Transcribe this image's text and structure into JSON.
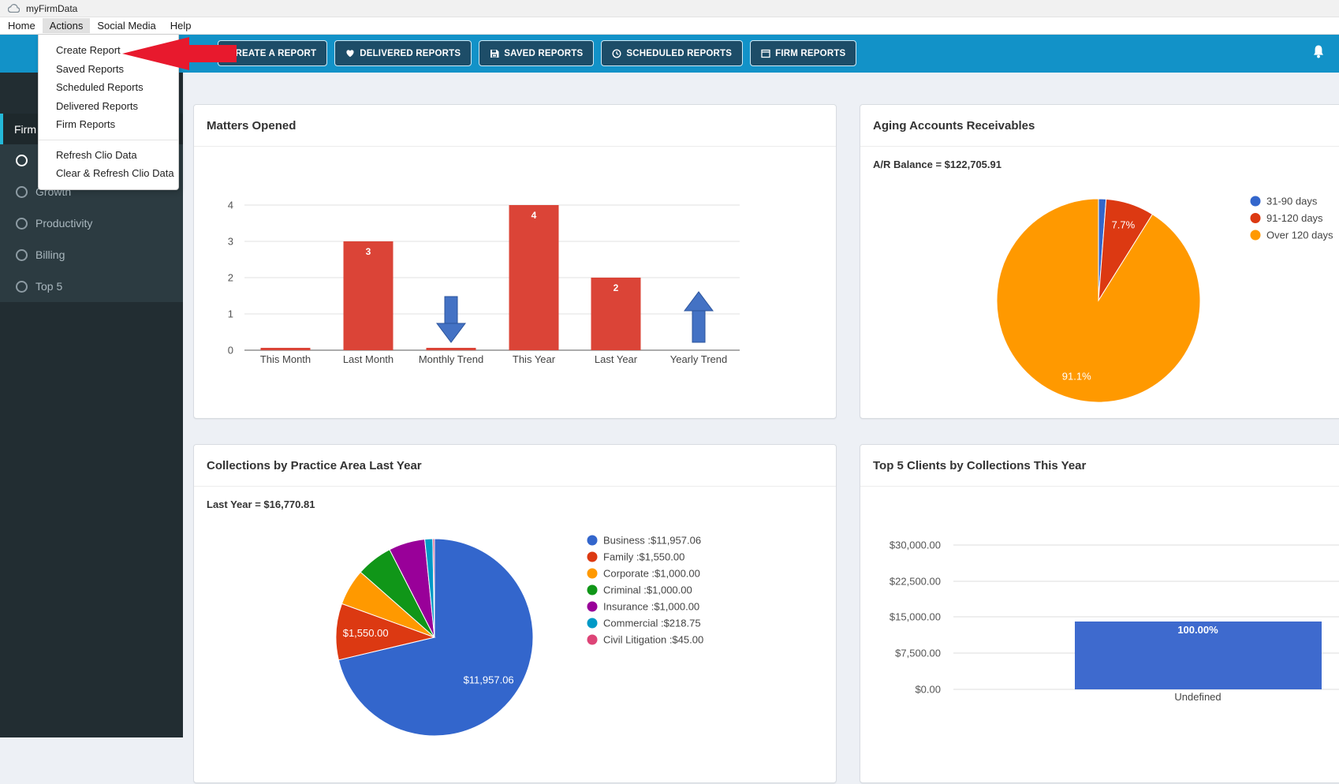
{
  "window": {
    "title": "myFirmData",
    "icon": "cloud-icon"
  },
  "menubar": {
    "items": [
      "Home",
      "Actions",
      "Social Media",
      "Help"
    ],
    "active_item": "Actions"
  },
  "actions_menu": {
    "primary": [
      "Create Report",
      "Saved Reports",
      "Scheduled Reports",
      "Delivered Reports",
      "Firm Reports"
    ],
    "secondary": [
      "Refresh Clio Data",
      "Clear & Refresh Clio Data"
    ]
  },
  "annotation": {
    "shape": "red-arrow-pointing-left",
    "points_at": "Create Report",
    "color": "#e8192d"
  },
  "toolbar": {
    "background": "#1292c8",
    "buttons": [
      {
        "label": "CREATE A REPORT",
        "icon": ""
      },
      {
        "label": "DELIVERED REPORTS",
        "icon": "heart-icon"
      },
      {
        "label": "SAVED REPORTS",
        "icon": "save-icon"
      },
      {
        "label": "SCHEDULED REPORTS",
        "icon": "clock-icon"
      },
      {
        "label": "FIRM REPORTS",
        "icon": "report-window-icon"
      }
    ],
    "bell_icon": "bell-icon"
  },
  "sidebar": {
    "header": "Firm",
    "items": [
      {
        "label": "",
        "icon": "circle-icon",
        "note": "label hidden behind open menu"
      },
      {
        "label": "Growth",
        "icon": "circle-icon"
      },
      {
        "label": "Productivity",
        "icon": "circle-icon"
      },
      {
        "label": "Billing",
        "icon": "circle-icon"
      },
      {
        "label": "Top 5",
        "icon": "circle-icon"
      }
    ]
  },
  "chart_data": [
    {
      "type": "bar",
      "title": "Matters Opened",
      "categories": [
        "This Month",
        "Last Month",
        "Monthly Trend",
        "This Year",
        "Last Year",
        "Yearly Trend"
      ],
      "yticks": [
        0,
        1,
        2,
        3,
        4
      ],
      "ylim": [
        0,
        4
      ],
      "grid": true,
      "bar_color": "#db4437",
      "trend_arrow_color": "#4472c4",
      "items": [
        {
          "category": "This Month",
          "value": 0,
          "label": "",
          "zero_bar": true
        },
        {
          "category": "Last Month",
          "value": 3,
          "label": "3"
        },
        {
          "category": "Monthly Trend",
          "trend": "down",
          "zero_bar": true
        },
        {
          "category": "This Year",
          "value": 4,
          "label": "4"
        },
        {
          "category": "Last Year",
          "value": 2,
          "label": "2"
        },
        {
          "category": "Yearly Trend",
          "trend": "up"
        }
      ]
    },
    {
      "type": "pie",
      "title": "Aging Accounts Receivables",
      "subtitle": "A/R Balance = $122,705.91",
      "legend_position": "right",
      "slices": [
        {
          "name": "31-90 days",
          "pct": 1.2,
          "color": "#3366cc",
          "label": ""
        },
        {
          "name": "91-120 days",
          "pct": 7.7,
          "color": "#dc3912",
          "label": "7.7%"
        },
        {
          "name": "Over 120 days",
          "pct": 91.1,
          "color": "#ff9900",
          "label": "91.1%"
        }
      ]
    },
    {
      "type": "pie",
      "title": "Collections by Practice Area Last Year",
      "subtitle": "Last Year = $16,770.81",
      "total": "$16,770.81",
      "legend_position": "right",
      "slices": [
        {
          "name": "Business",
          "value": "$11,957.06",
          "pct": 71.3,
          "color": "#3366cc",
          "label": "$11,957.06",
          "legend": "Business :$11,957.06"
        },
        {
          "name": "Family",
          "value": "$1,550.00",
          "pct": 9.24,
          "color": "#dc3912",
          "label": "$1,550.00",
          "legend": "Family :$1,550.00"
        },
        {
          "name": "Corporate",
          "value": "$1,000.00",
          "pct": 5.96,
          "color": "#ff9900",
          "label": "",
          "legend": "Corporate :$1,000.00"
        },
        {
          "name": "Criminal",
          "value": "$1,000.00",
          "pct": 5.96,
          "color": "#109618",
          "label": "",
          "legend": "Criminal :$1,000.00"
        },
        {
          "name": "Insurance",
          "value": "$1,000.00",
          "pct": 5.96,
          "color": "#990099",
          "label": "",
          "legend": "Insurance :$1,000.00"
        },
        {
          "name": "Commercial",
          "value": "$218.75",
          "pct": 1.3,
          "color": "#0099c6",
          "label": "",
          "legend": "Commercial :$218.75"
        },
        {
          "name": "Civil Litigation",
          "value": "$45.00",
          "pct": 0.28,
          "color": "#dd4477",
          "label": "",
          "legend": "Civil Litigation :$45.00"
        }
      ]
    },
    {
      "type": "bar",
      "title": "Top 5 Clients by Collections This Year",
      "categories": [
        "Undefined"
      ],
      "yticks": [
        "$30,000.00",
        "$22,500.00",
        "$15,000.00",
        "$7,500.00",
        "$0.00"
      ],
      "ylim": [
        0,
        30000
      ],
      "grid": true,
      "bar_color": "#3e6ace",
      "bars": [
        {
          "category": "Undefined",
          "label": "100.00%",
          "approx_value": 14100
        }
      ]
    }
  ]
}
